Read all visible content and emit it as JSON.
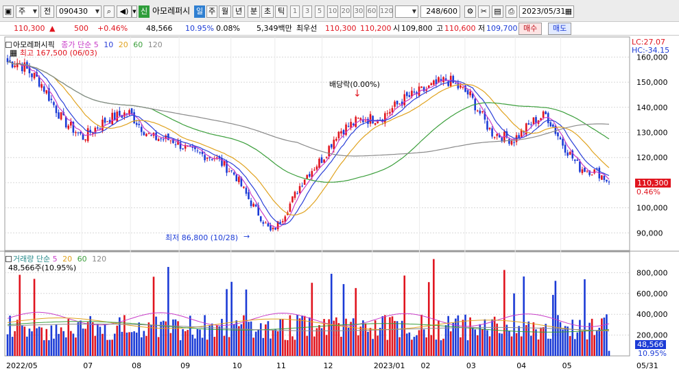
{
  "toolbar": {
    "market_type": "주",
    "prev": "전",
    "code": "090430",
    "new_tag": "신",
    "stock_name": "아모레퍼시",
    "periods": [
      "일",
      "주",
      "월",
      "년",
      "분",
      "초",
      "틱"
    ],
    "selected_period": "일",
    "intervals": [
      "1",
      "3",
      "5",
      "10",
      "20",
      "30",
      "60",
      "120"
    ],
    "count": "248/600",
    "date": "2023/05/31"
  },
  "quote": {
    "price": "110,300",
    "change": "500",
    "change_pct": "+0.46%",
    "volume": "48,566",
    "volume_ratio": "10.95%",
    "turnover": "0.08%",
    "amount": "5,349백만",
    "best_label": "최우선",
    "ask": "110,300",
    "bid": "110,200",
    "open_label": "시",
    "open": "109,800",
    "high_label": "고",
    "high": "110,600",
    "low_label": "저",
    "low": "109,700",
    "buy_label": "매수",
    "sell_label": "매도"
  },
  "price_panel": {
    "name_label": "아모레퍼시픽",
    "legend_prefix": "종가 단순",
    "ma_periods": [
      "5",
      "10",
      "20",
      "60",
      "120"
    ],
    "max_label": "최고 167,500 (06/03)",
    "min_label": "최저 86,800 (10/28)",
    "dividend_label": "배당락(0.00%)",
    "lc_label": "LC:27.07",
    "hc_label": "HC:-34.15",
    "current_price": "110,300",
    "current_pct": "0.46%"
  },
  "volume_panel": {
    "legend_prefix": "거래량 단순",
    "ma_periods": [
      "5",
      "20",
      "60",
      "120"
    ],
    "info": "48,566주(10.95%)",
    "current_volume": "48,566",
    "current_pct": "10.95%"
  },
  "chart_data": [
    {
      "type": "candlestick",
      "title": "아모레퍼시픽",
      "ylim": [
        83000,
        168000
      ],
      "y_ticks": [
        90000,
        100000,
        110000,
        120000,
        130000,
        140000,
        150000,
        160000
      ],
      "y_tick_labels": [
        "90,000",
        "100,000",
        "110,000",
        "120,000",
        "130,000",
        "140,000",
        "150,000",
        "160,000"
      ],
      "x_tick_labels": [
        "2022/05",
        "07",
        "08",
        "09",
        "10",
        "11",
        "12",
        "2023/01",
        "02",
        "03",
        "04",
        "05"
      ],
      "close_series": [
        [
          "2022-05-20",
          158000
        ],
        [
          "2022-06-03",
          150000
        ],
        [
          "2022-06-17",
          135000
        ],
        [
          "2022-06-30",
          128000
        ],
        [
          "2022-07-15",
          135000
        ],
        [
          "2022-07-29",
          138000
        ],
        [
          "2022-08-12",
          128000
        ],
        [
          "2022-08-26",
          127000
        ],
        [
          "2022-09-08",
          122000
        ],
        [
          "2022-09-22",
          120000
        ],
        [
          "2022-10-05",
          113000
        ],
        [
          "2022-10-14",
          103000
        ],
        [
          "2022-10-28",
          90000
        ],
        [
          "2022-11-04",
          96000
        ],
        [
          "2022-11-18",
          112000
        ],
        [
          "2022-11-30",
          120000
        ],
        [
          "2022-12-09",
          130000
        ],
        [
          "2022-12-23",
          135000
        ],
        [
          "2023-01-06",
          136000
        ],
        [
          "2023-01-20",
          143000
        ],
        [
          "2023-02-03",
          147000
        ],
        [
          "2023-02-17",
          151000
        ],
        [
          "2023-03-03",
          145000
        ],
        [
          "2023-03-17",
          130000
        ],
        [
          "2023-03-31",
          127000
        ],
        [
          "2023-04-14",
          135000
        ],
        [
          "2023-04-21",
          137000
        ],
        [
          "2023-05-02",
          125000
        ],
        [
          "2023-05-12",
          116000
        ],
        [
          "2023-05-24",
          114000
        ],
        [
          "2023-05-31",
          110300
        ]
      ],
      "moving_averages": [
        {
          "name": "5",
          "color": "#c83cc8"
        },
        {
          "name": "10",
          "color": "#2a3fd8"
        },
        {
          "name": "20",
          "color": "#e0a21e"
        },
        {
          "name": "60",
          "color": "#3a9e3a"
        },
        {
          "name": "120",
          "color": "#8a8a8a"
        }
      ],
      "annotations": [
        {
          "label": "최고 167,500 (06/03)",
          "date": "2022-06-03",
          "value": 167500
        },
        {
          "label": "최저 86,800 (10/28)",
          "date": "2022-10-28",
          "value": 86800
        },
        {
          "label": "배당락(0.00%)",
          "date": "2022-12-28"
        }
      ]
    },
    {
      "type": "bar",
      "title": "거래량",
      "ylim": [
        0,
        1000000
      ],
      "y_ticks": [
        200000,
        400000,
        600000,
        800000
      ],
      "y_tick_labels": [
        "200,000",
        "400,000",
        "600,000",
        "800,000"
      ],
      "current_value": 48566,
      "moving_averages": [
        {
          "name": "5",
          "color": "#c83cc8"
        },
        {
          "name": "20",
          "color": "#e0a21e"
        },
        {
          "name": "60",
          "color": "#3a9e3a"
        },
        {
          "name": "120",
          "color": "#8a8a8a"
        }
      ]
    }
  ],
  "x_axis": {
    "labels": [
      "2022/05",
      "07",
      "08",
      "09",
      "10",
      "11",
      "12",
      "2023/01",
      "02",
      "03",
      "04",
      "05"
    ],
    "end_label": "05/31"
  },
  "colors": {
    "up": "#e0141e",
    "down": "#1b3bd6",
    "ma5": "#c83cc8",
    "ma10": "#2a3fd8",
    "ma20": "#e0a21e",
    "ma60": "#3a9e3a",
    "ma120": "#8a8a8a",
    "price_box": "#e0141e"
  }
}
